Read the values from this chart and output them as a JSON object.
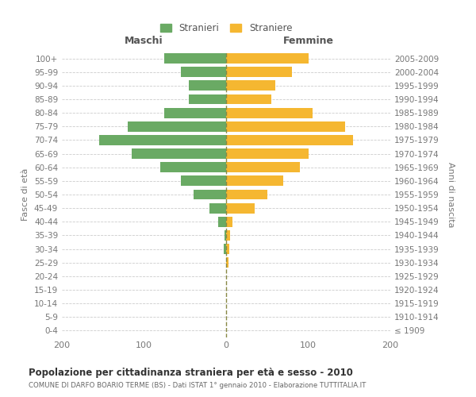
{
  "age_groups": [
    "0-4",
    "5-9",
    "10-14",
    "15-19",
    "20-24",
    "25-29",
    "30-34",
    "35-39",
    "40-44",
    "45-49",
    "50-54",
    "55-59",
    "60-64",
    "65-69",
    "70-74",
    "75-79",
    "80-84",
    "85-89",
    "90-94",
    "95-99",
    "100+"
  ],
  "birth_years": [
    "2005-2009",
    "2000-2004",
    "1995-1999",
    "1990-1994",
    "1985-1989",
    "1980-1984",
    "1975-1979",
    "1970-1974",
    "1965-1969",
    "1960-1964",
    "1955-1959",
    "1950-1954",
    "1945-1949",
    "1940-1944",
    "1935-1939",
    "1930-1934",
    "1925-1929",
    "1920-1924",
    "1915-1919",
    "1910-1914",
    "≤ 1909"
  ],
  "maschi": [
    75,
    55,
    45,
    45,
    75,
    120,
    155,
    115,
    80,
    55,
    40,
    20,
    10,
    2,
    3,
    0,
    0,
    0,
    0,
    0,
    0
  ],
  "femmine": [
    100,
    80,
    60,
    55,
    105,
    145,
    155,
    100,
    90,
    70,
    50,
    35,
    8,
    5,
    4,
    3,
    0,
    0,
    0,
    0,
    0
  ],
  "male_color": "#6aaa64",
  "female_color": "#f5b731",
  "grid_color": "#cccccc",
  "title": "Popolazione per cittadinanza straniera per età e sesso - 2010",
  "subtitle": "COMUNE DI DARFO BOARIO TERME (BS) - Dati ISTAT 1° gennaio 2010 - Elaborazione TUTTITALIA.IT",
  "label_maschi": "Maschi",
  "label_femmine": "Femmine",
  "ylabel_left": "Fasce di età",
  "ylabel_right": "Anni di nascita",
  "legend_male": "Stranieri",
  "legend_female": "Straniere",
  "xlim": 200,
  "bar_height": 0.75
}
